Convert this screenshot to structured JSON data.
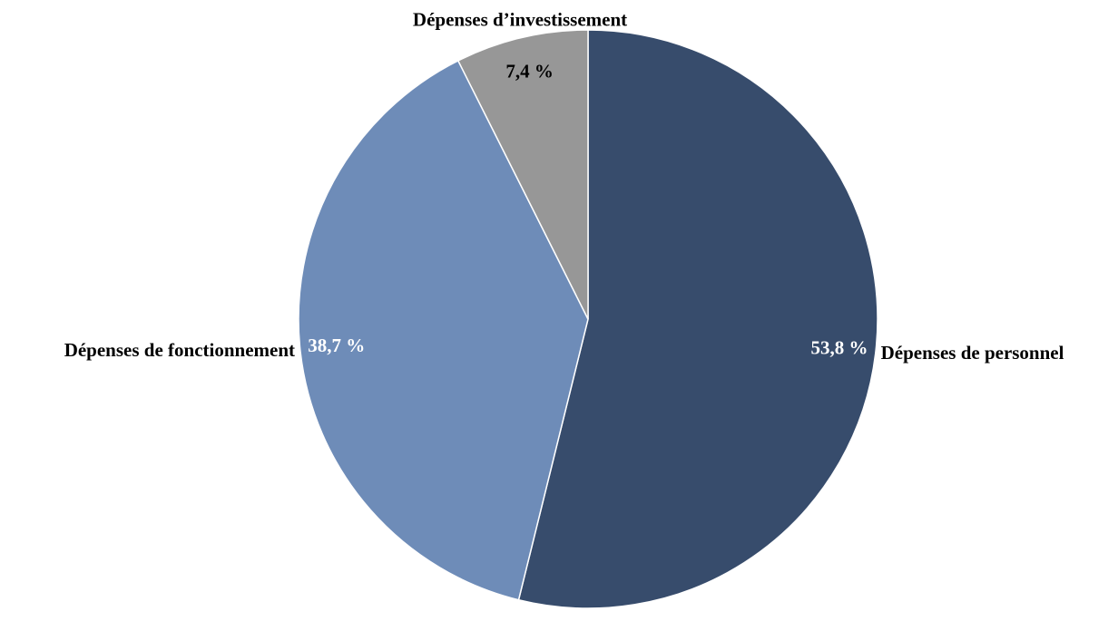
{
  "chart_data": {
    "type": "pie",
    "categories": [
      "Dépenses de personnel",
      "Dépenses de fonctionnement",
      "Dépenses d’investissement"
    ],
    "values": [
      53.8,
      38.7,
      7.4
    ],
    "value_labels": [
      "53,8 %",
      "38,7 %",
      "7,4 %"
    ],
    "colors": [
      "#374c6c",
      "#6e8cb8",
      "#979797"
    ]
  }
}
